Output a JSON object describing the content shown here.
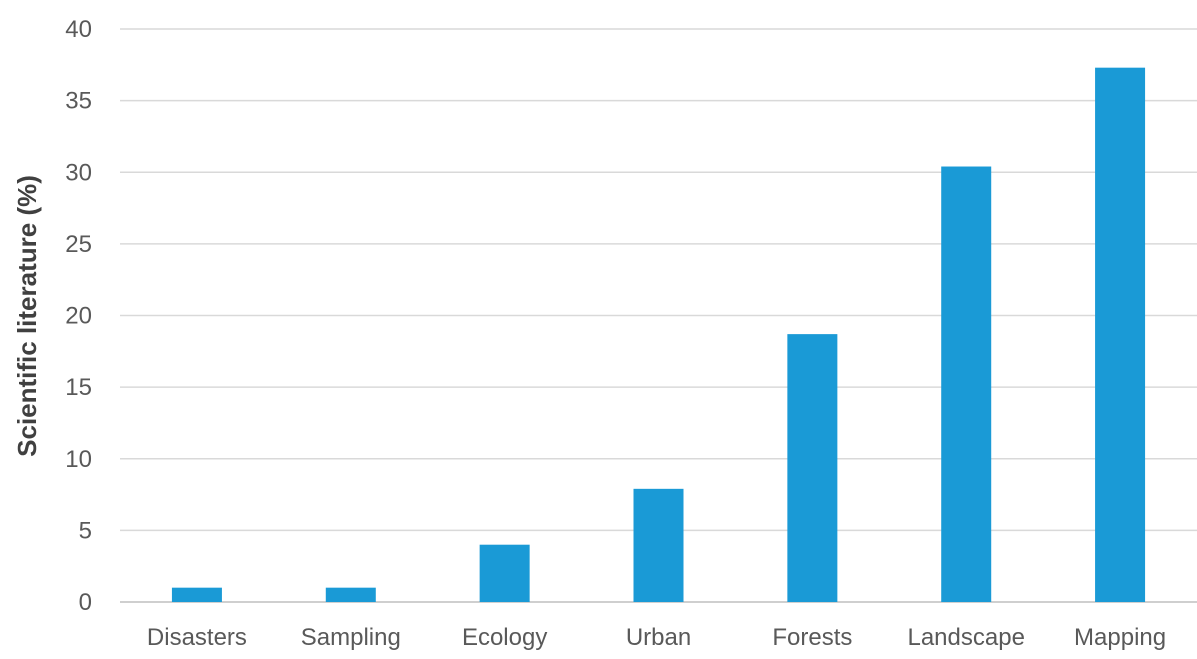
{
  "chart_data": {
    "type": "bar",
    "title": "",
    "xlabel": "",
    "ylabel": "Scientific literature (%)",
    "categories": [
      "Disasters",
      "Sampling",
      "Ecology",
      "Urban",
      "Forests",
      "Landscape",
      "Mapping"
    ],
    "values": [
      1,
      1,
      4,
      7.9,
      18.7,
      30.4,
      37.3
    ],
    "ylim": [
      0,
      40
    ],
    "yticks": [
      0,
      5,
      10,
      15,
      20,
      25,
      30,
      35,
      40
    ],
    "grid": true,
    "legend": "none",
    "bar_color": "#1a9ad6"
  }
}
